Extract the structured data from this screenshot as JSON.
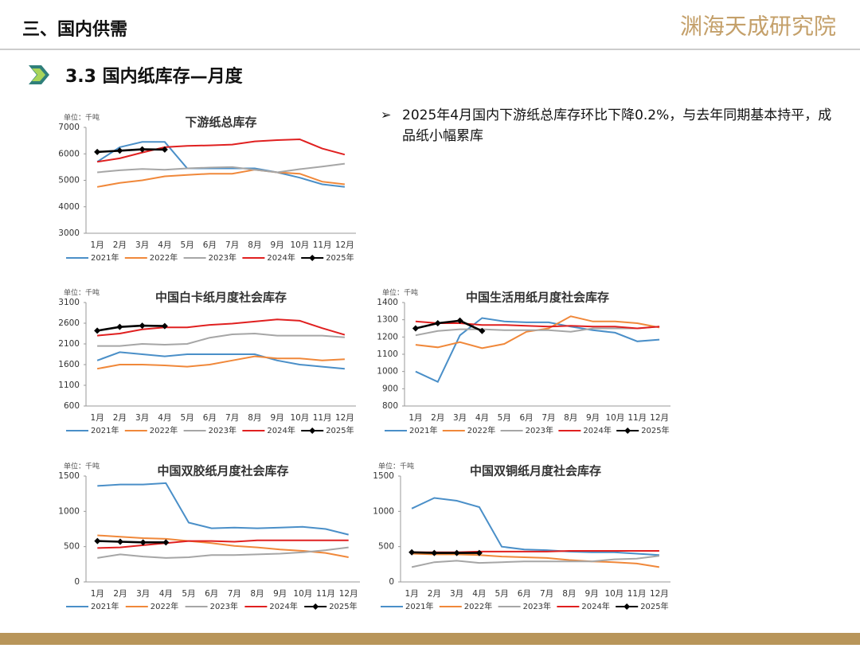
{
  "header": {
    "title": "三、国内供需",
    "logo": "渊海天成研究院",
    "section": "3.3 国内纸库存—月度"
  },
  "bullet": "2025年4月国内下游纸总库存环比下降0.2%，与去年同期基本持平，成品纸小幅累库",
  "chart_data": [
    {
      "type": "line",
      "title": "下游纸总库存",
      "unit": "单位：千吨",
      "categories": [
        "1月",
        "2月",
        "3月",
        "4月",
        "5月",
        "6月",
        "7月",
        "8月",
        "9月",
        "10月",
        "11月",
        "12月"
      ],
      "ylim": [
        3000,
        7000
      ],
      "yticks": [
        3000,
        4000,
        5000,
        6000,
        7000
      ],
      "series": [
        {
          "name": "2021年",
          "color": "#4a8fc8",
          "values": [
            5700,
            6250,
            6450,
            6450,
            5450,
            5450,
            5450,
            5450,
            5300,
            5100,
            4850,
            4750
          ]
        },
        {
          "name": "2022年",
          "color": "#f0883a",
          "values": [
            4750,
            4900,
            5000,
            5150,
            5200,
            5250,
            5250,
            5400,
            5300,
            5250,
            4950,
            4850
          ]
        },
        {
          "name": "2023年",
          "color": "#a6a6a6",
          "values": [
            5300,
            5380,
            5430,
            5400,
            5450,
            5480,
            5500,
            5400,
            5300,
            5420,
            5520,
            5630
          ]
        },
        {
          "name": "2024年",
          "color": "#e02020",
          "values": [
            5700,
            5830,
            6050,
            6250,
            6300,
            6320,
            6350,
            6470,
            6520,
            6550,
            6200,
            5970
          ]
        },
        {
          "name": "2025年",
          "color": "#000000",
          "marker": "diamond",
          "values": [
            6070,
            6120,
            6170,
            6160,
            null,
            null,
            null,
            null,
            null,
            null,
            null,
            null
          ]
        }
      ]
    },
    {
      "type": "line",
      "title": "中国白卡纸月度社会库存",
      "unit": "单位：千吨",
      "categories": [
        "1月",
        "2月",
        "3月",
        "4月",
        "5月",
        "6月",
        "7月",
        "8月",
        "9月",
        "10月",
        "11月",
        "12月"
      ],
      "ylim": [
        600,
        3100
      ],
      "yticks": [
        600,
        1100,
        1600,
        2100,
        2600,
        3100
      ],
      "series": [
        {
          "name": "2021年",
          "color": "#4a8fc8",
          "values": [
            1700,
            1900,
            1850,
            1800,
            1850,
            1850,
            1850,
            1850,
            1700,
            1600,
            1550,
            1500
          ]
        },
        {
          "name": "2022年",
          "color": "#f0883a",
          "values": [
            1500,
            1600,
            1600,
            1580,
            1550,
            1600,
            1700,
            1800,
            1750,
            1750,
            1700,
            1730
          ]
        },
        {
          "name": "2023年",
          "color": "#a6a6a6",
          "values": [
            2050,
            2050,
            2100,
            2080,
            2100,
            2250,
            2330,
            2350,
            2300,
            2300,
            2300,
            2260
          ]
        },
        {
          "name": "2024年",
          "color": "#e02020",
          "values": [
            2300,
            2350,
            2450,
            2500,
            2500,
            2560,
            2590,
            2640,
            2690,
            2660,
            2480,
            2320
          ]
        },
        {
          "name": "2025年",
          "color": "#000000",
          "marker": "diamond",
          "values": [
            2420,
            2510,
            2540,
            2530,
            null,
            null,
            null,
            null,
            null,
            null,
            null,
            null
          ]
        }
      ]
    },
    {
      "type": "line",
      "title": "中国生活用纸月度社会库存",
      "unit": "单位：千吨",
      "categories": [
        "1月",
        "2月",
        "3月",
        "4月",
        "5月",
        "6月",
        "7月",
        "8月",
        "9月",
        "10月",
        "11月",
        "12月"
      ],
      "ylim": [
        800,
        1400
      ],
      "yticks": [
        800,
        900,
        1000,
        1100,
        1200,
        1300,
        1400
      ],
      "series": [
        {
          "name": "2021年",
          "color": "#4a8fc8",
          "values": [
            1000,
            940,
            1210,
            1310,
            1290,
            1285,
            1285,
            1260,
            1240,
            1225,
            1175,
            1185
          ]
        },
        {
          "name": "2022年",
          "color": "#f0883a",
          "values": [
            1155,
            1140,
            1170,
            1135,
            1160,
            1230,
            1250,
            1320,
            1290,
            1290,
            1280,
            1255
          ]
        },
        {
          "name": "2023年",
          "color": "#a6a6a6",
          "values": [
            1210,
            1235,
            1245,
            1245,
            1240,
            1240,
            1240,
            1230,
            1250,
            1250,
            1250,
            1260
          ]
        },
        {
          "name": "2024年",
          "color": "#e02020",
          "values": [
            1290,
            1280,
            1280,
            1270,
            1270,
            1265,
            1260,
            1265,
            1260,
            1260,
            1250,
            1260
          ]
        },
        {
          "name": "2025年",
          "color": "#000000",
          "marker": "diamond",
          "values": [
            1250,
            1280,
            1295,
            1235,
            null,
            null,
            null,
            null,
            null,
            null,
            null,
            null
          ]
        }
      ]
    },
    {
      "type": "line",
      "title": "中国双胶纸月度社会库存",
      "unit": "单位：千吨",
      "categories": [
        "1月",
        "2月",
        "3月",
        "4月",
        "5月",
        "6月",
        "7月",
        "8月",
        "9月",
        "10月",
        "11月",
        "12月"
      ],
      "ylim": [
        0,
        1500
      ],
      "yticks": [
        0,
        500,
        1000,
        1500
      ],
      "series": [
        {
          "name": "2021年",
          "color": "#4a8fc8",
          "values": [
            1360,
            1380,
            1380,
            1400,
            840,
            760,
            770,
            760,
            770,
            780,
            750,
            670
          ]
        },
        {
          "name": "2022年",
          "color": "#f0883a",
          "values": [
            660,
            640,
            620,
            610,
            580,
            550,
            510,
            490,
            460,
            440,
            410,
            350
          ]
        },
        {
          "name": "2023年",
          "color": "#a6a6a6",
          "values": [
            340,
            390,
            360,
            340,
            350,
            380,
            380,
            390,
            400,
            420,
            450,
            490
          ]
        },
        {
          "name": "2024年",
          "color": "#e02020",
          "values": [
            480,
            490,
            520,
            550,
            580,
            580,
            570,
            590,
            590,
            590,
            590,
            590
          ]
        },
        {
          "name": "2025年",
          "color": "#000000",
          "marker": "diamond",
          "values": [
            580,
            570,
            560,
            560,
            null,
            null,
            null,
            null,
            null,
            null,
            null,
            null
          ]
        }
      ]
    },
    {
      "type": "line",
      "title": "中国双铜纸月度社会库存",
      "unit": "单位：千吨",
      "categories": [
        "1月",
        "2月",
        "3月",
        "4月",
        "5月",
        "6月",
        "7月",
        "8月",
        "9月",
        "10月",
        "11月",
        "12月"
      ],
      "ylim": [
        0,
        1500
      ],
      "yticks": [
        0,
        500,
        1000,
        1500
      ],
      "series": [
        {
          "name": "2021年",
          "color": "#4a8fc8",
          "values": [
            1040,
            1190,
            1150,
            1060,
            500,
            460,
            450,
            430,
            420,
            420,
            400,
            380
          ]
        },
        {
          "name": "2022年",
          "color": "#f0883a",
          "values": [
            400,
            390,
            390,
            380,
            360,
            350,
            340,
            310,
            290,
            280,
            260,
            210
          ]
        },
        {
          "name": "2023年",
          "color": "#a6a6a6",
          "values": [
            210,
            280,
            300,
            270,
            280,
            290,
            290,
            290,
            290,
            320,
            330,
            370
          ]
        },
        {
          "name": "2024年",
          "color": "#e02020",
          "values": [
            420,
            420,
            420,
            430,
            430,
            430,
            430,
            440,
            440,
            440,
            440,
            440
          ]
        },
        {
          "name": "2025年",
          "color": "#000000",
          "marker": "diamond",
          "values": [
            420,
            410,
            410,
            410,
            null,
            null,
            null,
            null,
            null,
            null,
            null,
            null
          ]
        }
      ]
    }
  ]
}
